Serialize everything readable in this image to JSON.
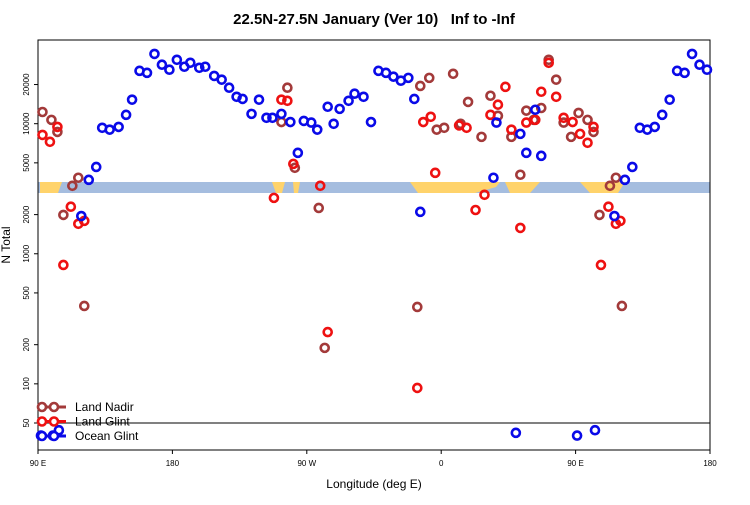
{
  "chart_data": {
    "type": "scatter",
    "title": "22.5N-27.5N January (Ver 10)   Inf to -Inf",
    "x_label": "Longitude (deg E)",
    "y_label": "N Total",
    "log_y": true,
    "xlim": [
      90,
      540
    ],
    "xticks": [
      {
        "value": 90,
        "label": "90 E"
      },
      180,
      {
        "value": 270,
        "label": "90 W"
      },
      {
        "value": 360,
        "label": "0"
      },
      {
        "value": 450,
        "label": "90 E"
      },
      {
        "value": 540,
        "label": "180"
      }
    ],
    "ylim": [
      31,
      44000
    ],
    "yticks": [
      50,
      100,
      200,
      500,
      1000,
      2000,
      5000,
      10000,
      20000
    ],
    "hline": 50,
    "legend": "lower left",
    "series": [
      {
        "name": "Land Nadir",
        "color": "#a33a3a",
        "x": [
          93,
          99,
          103,
          107,
          113,
          117,
          121,
          253,
          257,
          262,
          278,
          282,
          344,
          346,
          352,
          357,
          362,
          368,
          373,
          378,
          387,
          393,
          398,
          407,
          413,
          417,
          422,
          427,
          432,
          437,
          442,
          447,
          452,
          458,
          462,
          466,
          473,
          477,
          481
        ],
        "values": [
          12300,
          10700,
          8650,
          1990,
          3330,
          3840,
          397,
          10300,
          18900,
          4580,
          2250,
          189,
          390,
          19500,
          22500,
          9000,
          9300,
          24200,
          9980,
          14700,
          7920,
          16400,
          11500,
          7920,
          4050,
          12600,
          10700,
          13200,
          31000,
          21800,
          10200,
          7920,
          12100,
          10700,
          8650,
          1990,
          3330,
          3840,
          397
        ]
      },
      {
        "name": "Land Glint",
        "color": "#ee1111",
        "x": [
          93,
          98,
          103,
          107,
          112,
          117,
          121,
          248,
          253,
          257,
          261,
          279,
          284,
          344,
          348,
          353,
          356,
          372,
          377,
          383,
          389,
          393,
          398,
          403,
          407,
          413,
          417,
          423,
          427,
          432,
          437,
          442,
          448,
          453,
          458,
          462,
          467,
          472,
          477,
          480
        ],
        "values": [
          8200,
          7260,
          9450,
          820,
          2300,
          1700,
          1790,
          2690,
          15300,
          15000,
          4910,
          3330,
          250,
          93,
          10300,
          11300,
          4190,
          9700,
          9300,
          2170,
          2840,
          11700,
          14000,
          19200,
          9000,
          1580,
          10200,
          10700,
          17600,
          29400,
          16100,
          11100,
          10300,
          8350,
          7130,
          9450,
          820,
          2300,
          1700,
          1790
        ]
      },
      {
        "name": "Ocean Glint",
        "color": "#0a0ae8",
        "x": [
          92,
          100,
          104,
          119,
          124,
          129,
          133,
          138,
          144,
          149,
          153,
          158,
          163,
          168,
          173,
          178,
          183,
          188,
          192,
          198,
          202,
          208,
          213,
          218,
          223,
          227,
          233,
          238,
          243,
          247,
          253,
          259,
          264,
          268,
          273,
          277,
          284,
          288,
          292,
          298,
          302,
          308,
          313,
          318,
          323,
          328,
          333,
          338,
          342,
          346,
          395,
          397,
          410,
          413,
          417,
          423,
          427,
          451,
          463,
          476,
          483,
          488,
          493,
          498,
          503,
          508,
          513,
          518,
          523,
          528,
          533,
          538
        ],
        "values": [
          40,
          40,
          44,
          1950,
          3700,
          4650,
          9300,
          9000,
          9450,
          11700,
          15300,
          25500,
          24600,
          34400,
          28400,
          26000,
          31000,
          27400,
          29400,
          26900,
          27400,
          23300,
          21800,
          18900,
          16100,
          15500,
          11900,
          15300,
          11100,
          11100,
          11900,
          10300,
          5970,
          10500,
          10200,
          9000,
          13500,
          9980,
          13000,
          15000,
          17000,
          16100,
          10300,
          25500,
          24600,
          23000,
          21400,
          22500,
          15500,
          2100,
          3840,
          10200,
          42,
          8350,
          5970,
          12800,
          5660,
          40,
          44,
          1950,
          3700,
          4650,
          9300,
          9000,
          9450,
          11700,
          15300,
          25500,
          24600,
          34400,
          28400,
          26000
        ]
      }
    ]
  }
}
